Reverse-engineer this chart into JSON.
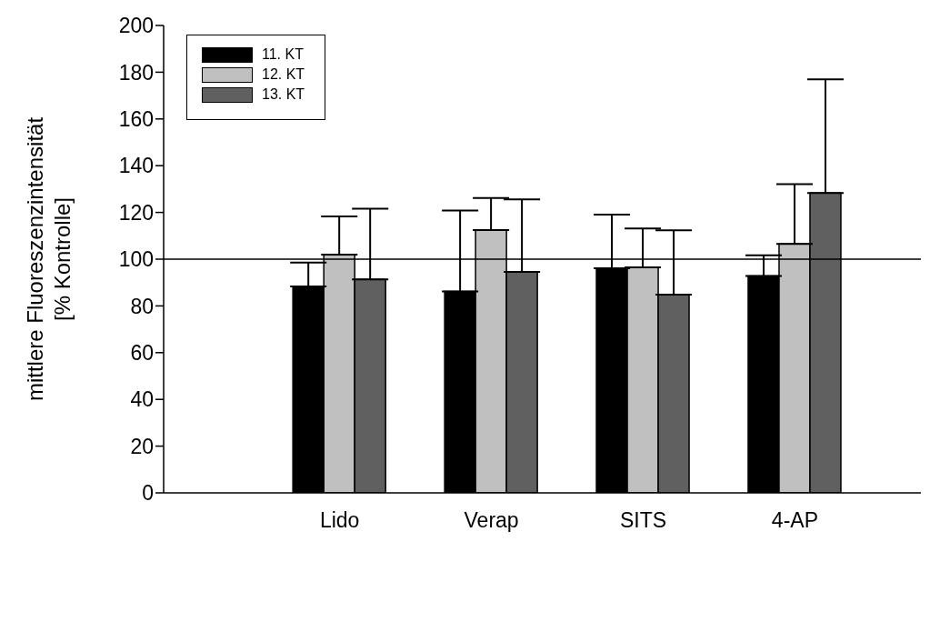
{
  "chart_data": {
    "type": "bar",
    "ylabel": "mittlere Fluoreszenzintensität\n[% Kontrolle]",
    "categories": [
      "Lido",
      "Verap",
      "SITS",
      "4-AP"
    ],
    "series": [
      {
        "name": "11. KT",
        "color": "#000000",
        "values": [
          88.3,
          86.2,
          96.1,
          92.8
        ],
        "errors": [
          [
            88.3,
            98.5
          ],
          [
            86.2,
            120.8
          ],
          [
            96.1,
            119.1
          ],
          [
            92.8,
            101.7
          ]
        ]
      },
      {
        "name": "12. KT",
        "color": "#c0c0c0",
        "values": [
          101.9,
          112.5,
          96.5,
          106.5
        ],
        "errors": [
          [
            101.9,
            118.3
          ],
          [
            112.5,
            126.2
          ],
          [
            96.5,
            113.1
          ],
          [
            106.5,
            132.1
          ]
        ]
      },
      {
        "name": "13. KT",
        "color": "#606060",
        "values": [
          91.3,
          94.6,
          84.8,
          128.3
        ],
        "errors": [
          [
            91.3,
            121.6
          ],
          [
            94.6,
            125.6
          ],
          [
            84.8,
            112.4
          ],
          [
            128.3,
            176.9
          ]
        ]
      }
    ],
    "ylim": [
      0,
      200
    ],
    "yticks": [
      0,
      20,
      40,
      60,
      80,
      100,
      120,
      140,
      160,
      180,
      200
    ],
    "ref_lines": [
      {
        "axis": "y",
        "value": 100,
        "color": "#000000"
      }
    ],
    "grid": false,
    "legend": "top left"
  }
}
